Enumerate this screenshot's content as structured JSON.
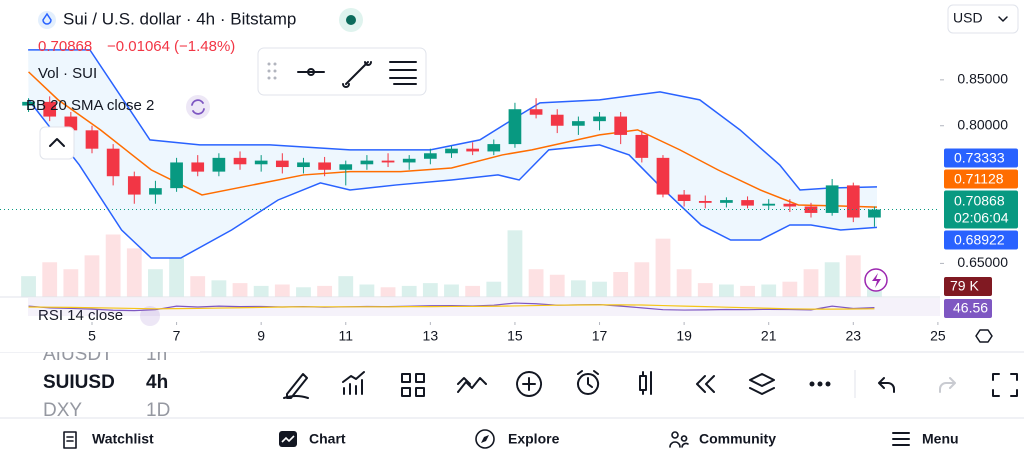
{
  "header": {
    "symbol_title": "Sui / U.S. dollar · 4h · Bitstamp",
    "change": "−0.01064",
    "change_pct": "(−1.48%)"
  },
  "currency": "USD",
  "indicators": {
    "volume": "Vol · SUI",
    "bb": "BB 20 SMA close 2",
    "rsi": "RSI 14 close"
  },
  "countdown": "02:06:04",
  "chart_data": [
    {
      "type": "candlestick",
      "x": [
        3.5,
        4,
        4.5,
        5,
        5.5,
        6,
        6.5,
        7,
        7.5,
        8,
        8.5,
        9,
        9.5,
        10,
        10.5,
        11,
        11.5,
        12,
        12.5,
        13,
        13.5,
        14,
        14.5,
        15,
        15.5,
        16,
        16.5,
        17,
        17.5,
        18,
        18.5,
        19,
        19.5,
        20,
        20.5,
        21,
        21.5,
        22,
        22.5,
        23,
        23.5
      ],
      "open": [
        0.822,
        0.826,
        0.81,
        0.795,
        0.775,
        0.745,
        0.725,
        0.732,
        0.76,
        0.75,
        0.765,
        0.758,
        0.762,
        0.755,
        0.76,
        0.752,
        0.758,
        0.762,
        0.76,
        0.764,
        0.77,
        0.775,
        0.772,
        0.78,
        0.818,
        0.812,
        0.8,
        0.805,
        0.81,
        0.79,
        0.765,
        0.725,
        0.718,
        0.716,
        0.719,
        0.713,
        0.715,
        0.712,
        0.705,
        0.735,
        0.7
      ],
      "high": [
        0.83,
        0.832,
        0.815,
        0.8,
        0.78,
        0.75,
        0.74,
        0.765,
        0.768,
        0.77,
        0.772,
        0.768,
        0.77,
        0.765,
        0.766,
        0.762,
        0.768,
        0.77,
        0.768,
        0.775,
        0.778,
        0.782,
        0.785,
        0.825,
        0.83,
        0.818,
        0.81,
        0.815,
        0.815,
        0.795,
        0.768,
        0.73,
        0.724,
        0.722,
        0.723,
        0.72,
        0.72,
        0.716,
        0.742,
        0.738,
        0.712
      ],
      "low": [
        0.815,
        0.805,
        0.79,
        0.77,
        0.735,
        0.715,
        0.715,
        0.728,
        0.745,
        0.745,
        0.752,
        0.75,
        0.748,
        0.748,
        0.745,
        0.735,
        0.752,
        0.755,
        0.752,
        0.758,
        0.765,
        0.768,
        0.768,
        0.776,
        0.808,
        0.792,
        0.79,
        0.795,
        0.78,
        0.76,
        0.722,
        0.712,
        0.71,
        0.711,
        0.71,
        0.709,
        0.706,
        0.7,
        0.702,
        0.695,
        0.69
      ],
      "close": [
        0.826,
        0.81,
        0.795,
        0.775,
        0.745,
        0.725,
        0.732,
        0.76,
        0.75,
        0.765,
        0.758,
        0.762,
        0.755,
        0.76,
        0.752,
        0.758,
        0.762,
        0.76,
        0.764,
        0.77,
        0.775,
        0.772,
        0.78,
        0.818,
        0.812,
        0.8,
        0.805,
        0.81,
        0.79,
        0.765,
        0.725,
        0.718,
        0.716,
        0.719,
        0.713,
        0.715,
        0.712,
        0.705,
        0.735,
        0.7,
        0.70868
      ],
      "up_color": "#089981",
      "down_color": "#f23645",
      "xlim": [
        2.825,
        25.05
      ],
      "ylim": [
        0.6134,
        0.937
      ],
      "xticks": [
        5,
        7,
        9,
        11,
        13,
        15,
        17,
        19,
        21,
        23,
        25
      ],
      "yticks": [
        {
          "value": 0.85,
          "label": "0.85000"
        },
        {
          "value": 0.8,
          "label": "0.80000"
        },
        {
          "value": 0.65,
          "label": "0.65000"
        }
      ],
      "overlays": [
        {
          "color": "#2962ff",
          "x": [
            3.49,
            4.95,
            6.37,
            7.55,
            9.21,
            11.1,
            13.0,
            14.17,
            15.12,
            15.59,
            17.0,
            18.43,
            19.37,
            20.32,
            21.26,
            21.74,
            22.45,
            23.56
          ],
          "values": [
            0.8827,
            0.8827,
            0.7846,
            0.7791,
            0.7791,
            0.7737,
            0.7737,
            0.7846,
            0.8118,
            0.8249,
            0.8282,
            0.8369,
            0.8282,
            0.7955,
            0.7573,
            0.73,
            0.7322,
            0.73333
          ]
        },
        {
          "color": "#ff6d00",
          "x": [
            3.5,
            4.2,
            5.2,
            6.4,
            7.6,
            8.8,
            10.0,
            11.1,
            12.3,
            13.5,
            14.7,
            15.4,
            17.0,
            17.9,
            18.9,
            19.8,
            20.8,
            21.7,
            22.7,
            23.56
          ],
          "values": [
            0.8587,
            0.8282,
            0.7955,
            0.7519,
            0.7246,
            0.7355,
            0.7464,
            0.75,
            0.75,
            0.754,
            0.7682,
            0.7737,
            0.79,
            0.7955,
            0.7737,
            0.7519,
            0.73,
            0.7137,
            0.7126,
            0.71128
          ]
        },
        {
          "color": "#2962ff",
          "x": [
            3.5,
            4.7,
            5.7,
            6.4,
            7.1,
            8.3,
            9.4,
            10.4,
            11.1,
            12.2,
            13.5,
            14.6,
            15.1,
            15.8,
            17.0,
            17.7,
            18.4,
            19.4,
            20.1,
            20.8,
            21.5,
            22.0,
            22.7,
            23.56
          ],
          "values": [
            0.8282,
            0.7573,
            0.6864,
            0.6559,
            0.6559,
            0.6864,
            0.7191,
            0.7377,
            0.73,
            0.7355,
            0.7409,
            0.7464,
            0.7409,
            0.7737,
            0.7791,
            0.7682,
            0.7355,
            0.6919,
            0.6755,
            0.6755,
            0.6919,
            0.6919,
            0.6864,
            0.68922
          ]
        }
      ]
    },
    {
      "type": "bar",
      "ylim": [
        0,
        900000
      ],
      "values": [
        150000,
        250000,
        200000,
        300000,
        450000,
        350000,
        200000,
        280000,
        150000,
        120000,
        100000,
        80000,
        90000,
        70000,
        80000,
        150000,
        90000,
        70000,
        80000,
        100000,
        90000,
        80000,
        110000,
        480000,
        200000,
        160000,
        120000,
        110000,
        180000,
        250000,
        420000,
        200000,
        100000,
        90000,
        80000,
        90000,
        110000,
        200000,
        250000,
        300000,
        79000
      ],
      "value_labels": [
        null,
        null,
        null,
        null,
        null,
        null,
        null,
        null,
        null,
        null,
        null,
        null,
        null,
        null,
        null,
        null,
        null,
        null,
        null,
        null,
        null,
        null,
        null,
        null,
        null,
        null,
        null,
        null,
        null,
        null,
        null,
        null,
        null,
        null,
        null,
        null,
        null,
        null,
        null,
        null,
        "79 K"
      ],
      "label_color": "#801922"
    },
    {
      "type": "line",
      "ylim": [
        0,
        100
      ],
      "series": [
        {
          "color": "#7e57c2",
          "values": [
            55,
            45,
            42,
            38,
            32,
            30,
            35,
            55,
            50,
            55,
            52,
            53,
            50,
            52,
            49,
            51,
            53,
            52,
            54,
            57,
            58,
            56,
            60,
            72,
            68,
            60,
            62,
            63,
            55,
            45,
            35,
            33,
            34,
            36,
            35,
            37,
            36,
            34,
            55,
            42,
            46.56
          ]
        },
        {
          "color": "#f5c518",
          "values": [
            50,
            49,
            48,
            46,
            44,
            42,
            40,
            41,
            42,
            44,
            46,
            48,
            50,
            51,
            51,
            51,
            51,
            51,
            52,
            52,
            53,
            53,
            54,
            56,
            58,
            60,
            61,
            62,
            62,
            61,
            58,
            55,
            52,
            49,
            46,
            43,
            40,
            38,
            38,
            39,
            40
          ]
        }
      ]
    }
  ],
  "watchlist": [
    {
      "symbol": "AIUSDT",
      "interval": "1h"
    },
    {
      "symbol": "SUIUSD",
      "interval": "4h"
    },
    {
      "symbol": "DXY",
      "interval": "1D"
    }
  ],
  "nav": [
    "Watchlist",
    "Chart",
    "Explore",
    "Community",
    "Menu"
  ]
}
